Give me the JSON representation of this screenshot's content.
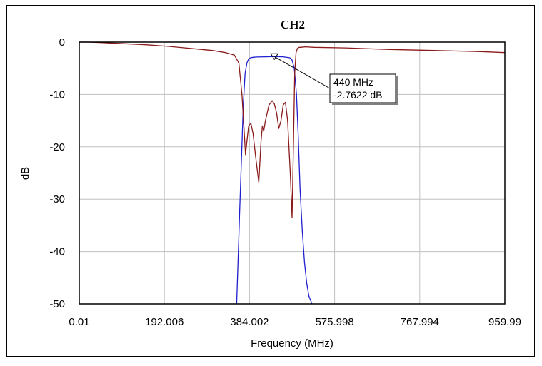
{
  "chart_data": {
    "type": "line",
    "title": "CH2",
    "xlabel": "Frequency (MHz)",
    "ylabel": "dB",
    "xlim": [
      0.01,
      959.99
    ],
    "ylim": [
      -50,
      0
    ],
    "x_ticks": [
      "0.01",
      "192.006",
      "384.002",
      "575.998",
      "767.994",
      "959.99"
    ],
    "y_ticks": [
      "0",
      "-10",
      "-20",
      "-30",
      "-40",
      "-50"
    ],
    "grid": true,
    "colors": {
      "s21": "#1f1fd0",
      "s11": "#8b1a1a"
    },
    "series": [
      {
        "key": "s21",
        "x": [
          355,
          358,
          362,
          366,
          370,
          374,
          378,
          382,
          386,
          392,
          400,
          420,
          440,
          460,
          475,
          480,
          485,
          490,
          494,
          498,
          503,
          508,
          513,
          518,
          525
        ],
        "y": [
          -50,
          -42,
          -32,
          -22,
          -12,
          -6,
          -4,
          -3.2,
          -3.0,
          -2.9,
          -2.85,
          -2.8,
          -2.76,
          -2.8,
          -3.0,
          -3.4,
          -5,
          -10,
          -18,
          -28,
          -36,
          -42,
          -46,
          -48.5,
          -50
        ]
      },
      {
        "key": "s11",
        "x": [
          0.01,
          20,
          50,
          100,
          150,
          200,
          250,
          300,
          330,
          350,
          360,
          367,
          372,
          375,
          378,
          382,
          387,
          392,
          398,
          405,
          410,
          413,
          416,
          420,
          428,
          435,
          440,
          445,
          450,
          455,
          460,
          465,
          470,
          476,
          480,
          483,
          486,
          489,
          492,
          496,
          500,
          510,
          530,
          600,
          700,
          800,
          900,
          959.99
        ],
        "y": [
          0,
          0,
          -0.1,
          -0.3,
          -0.5,
          -0.8,
          -1.2,
          -1.6,
          -2,
          -2.5,
          -4,
          -10,
          -17,
          -21.5,
          -19,
          -16,
          -15.5,
          -17.5,
          -22,
          -26.8,
          -19,
          -16,
          -17,
          -15,
          -12,
          -11.2,
          -11.8,
          -13.5,
          -16.5,
          -15,
          -12,
          -11.5,
          -15,
          -25,
          -33.5,
          -20,
          -6,
          -2,
          -1.2,
          -1,
          -1,
          -0.9,
          -1,
          -1.1,
          -1.4,
          -1.6,
          -1.8,
          -2
        ]
      }
    ],
    "marker": {
      "x": 440,
      "y": -2.7622,
      "line1": "440 MHz",
      "line2": "-2.7622 dB"
    }
  }
}
